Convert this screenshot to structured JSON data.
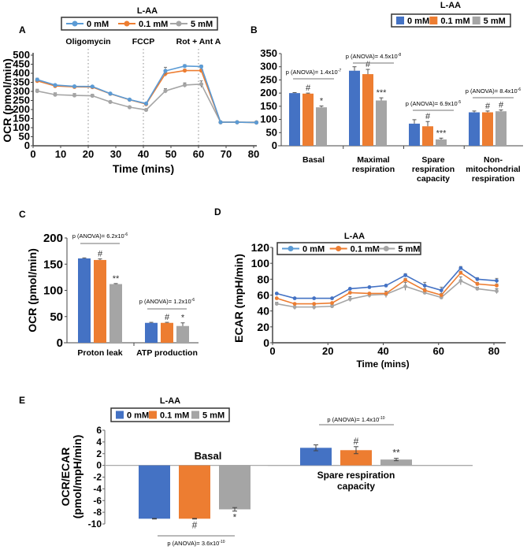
{
  "colors": {
    "c0": "#4472C4",
    "c01": "#ED7D31",
    "c5": "#A5A5A5",
    "line0": "#5B9BD5"
  },
  "legend_title": "L-AA",
  "legend": [
    "0 mM",
    "0.1 mM",
    "5 mM"
  ],
  "chart_data": [
    {
      "panel": "A",
      "type": "line",
      "title": "L-AA",
      "xlabel": "Time (mins)",
      "ylabel": "OCR (pmol/min)",
      "xlim": [
        0,
        82
      ],
      "ylim": [
        0,
        500
      ],
      "xticks": [
        0,
        10,
        20,
        30,
        40,
        50,
        60,
        70,
        80
      ],
      "yticks": [
        0,
        50,
        100,
        150,
        200,
        250,
        300,
        350,
        400,
        450,
        500
      ],
      "annotations": [
        {
          "label": "Oligomycin",
          "x": 20
        },
        {
          "label": "FCCP",
          "x": 40
        },
        {
          "label": "Rot + Ant A",
          "x": 60
        }
      ],
      "x": [
        1.5,
        8,
        15,
        21.5,
        28,
        35,
        41,
        48,
        55,
        61,
        68,
        74,
        81
      ],
      "series": [
        {
          "name": "0 mM",
          "values": [
            365,
            335,
            328,
            327,
            288,
            255,
            233,
            413,
            440,
            437,
            130,
            130,
            128
          ],
          "err": [
            8,
            5,
            5,
            5,
            5,
            4,
            5,
            20,
            8,
            8,
            4,
            3,
            3
          ]
        },
        {
          "name": "0.1 mM",
          "values": [
            358,
            330,
            325,
            324,
            287,
            254,
            230,
            398,
            415,
            415,
            130,
            130,
            128
          ],
          "err": [
            8,
            5,
            5,
            5,
            5,
            4,
            5,
            15,
            8,
            8,
            4,
            3,
            3
          ]
        },
        {
          "name": "5 mM",
          "values": [
            302,
            282,
            278,
            276,
            242,
            213,
            198,
            303,
            335,
            340,
            130,
            130,
            130
          ],
          "err": [
            10,
            10,
            10,
            8,
            5,
            4,
            6,
            12,
            12,
            18,
            4,
            3,
            3
          ]
        }
      ]
    },
    {
      "panel": "B",
      "type": "bar",
      "title": "L-AA",
      "ylabel": "",
      "ylim": [
        0,
        350
      ],
      "yticks": [
        0,
        50,
        100,
        150,
        200,
        250,
        300,
        350
      ],
      "categories": [
        "Basal",
        "Maximal respiration",
        "Spare respiration capacity",
        "Non-mitochondrial respiration"
      ],
      "category_lines": [
        [
          "Basal"
        ],
        [
          "Maximal",
          "respiration"
        ],
        [
          "Spare",
          "respiration",
          "capacity"
        ],
        [
          "Non-",
          "mitochondrial",
          "respiration"
        ]
      ],
      "series": [
        {
          "name": "0 mM",
          "values": [
            200,
            285,
            84,
            127
          ],
          "err": [
            2,
            15,
            15,
            5
          ]
        },
        {
          "name": "0.1 mM",
          "values": [
            198,
            272,
            74,
            127
          ],
          "err": [
            2,
            18,
            18,
            5
          ]
        },
        {
          "name": "5 mM",
          "values": [
            146,
            172,
            24,
            131
          ],
          "err": [
            5,
            10,
            5,
            5
          ]
        }
      ],
      "significance": [
        [
          "",
          "#",
          "*"
        ],
        [
          "",
          "#",
          "***"
        ],
        [
          "",
          "#",
          "***"
        ],
        [
          "",
          "#",
          "#"
        ]
      ],
      "p_values": [
        {
          "base": "p (ANOVA)= 1.4x10",
          "exp": "-7"
        },
        {
          "base": "p (ANOVA)= 4.5x10",
          "exp": "-8"
        },
        {
          "base": "p (ANOVA)= 6.9x10",
          "exp": "-5"
        },
        {
          "base": "p (ANOVA)= 8.4x10",
          "exp": "-6"
        }
      ]
    },
    {
      "panel": "C",
      "type": "bar",
      "ylabel": "OCR (pmol/min)",
      "ylim": [
        0,
        200
      ],
      "yticks": [
        0,
        50,
        100,
        150,
        200
      ],
      "categories": [
        "Proton leak",
        "ATP production"
      ],
      "series": [
        {
          "name": "0 mM",
          "values": [
            161,
            38
          ],
          "err": [
            1,
            1
          ]
        },
        {
          "name": "0.1 mM",
          "values": [
            158,
            38
          ],
          "err": [
            2,
            1
          ]
        },
        {
          "name": "5 mM",
          "values": [
            112,
            32
          ],
          "err": [
            1,
            6
          ]
        }
      ],
      "significance": [
        [
          "",
          "#",
          "**"
        ],
        [
          "",
          "#",
          "*"
        ]
      ],
      "p_values": [
        {
          "base": "p (ANOVA)= 6.2x10",
          "exp": "-6"
        },
        {
          "base": "p (ANOVA)= 1.2x10",
          "exp": "-6"
        }
      ]
    },
    {
      "panel": "D",
      "type": "line",
      "title": "L-AA",
      "xlabel": "Time (mins)",
      "ylabel": "ECAR (mpH/min)",
      "xlim": [
        0,
        85
      ],
      "ylim": [
        0,
        120
      ],
      "xticks": [
        0,
        20,
        40,
        60,
        80
      ],
      "yticks": [
        0,
        20,
        40,
        60,
        80,
        100,
        120
      ],
      "x": [
        1.5,
        8,
        15,
        21.5,
        28,
        35,
        41,
        48,
        55,
        61,
        68,
        74,
        81
      ],
      "series": [
        {
          "name": "0 mM",
          "values": [
            62,
            56,
            56,
            56,
            68,
            70,
            72,
            85,
            72,
            66,
            94,
            80,
            78
          ],
          "err": [
            1,
            1,
            1,
            1,
            1,
            1,
            1,
            2,
            4,
            4,
            2,
            2,
            3
          ]
        },
        {
          "name": "0.1 mM",
          "values": [
            56,
            49,
            49,
            50,
            63,
            62,
            62,
            79,
            66,
            60,
            88,
            74,
            72
          ],
          "err": [
            1,
            1,
            1,
            1,
            1,
            1,
            1,
            2,
            2,
            2,
            2,
            2,
            2
          ]
        },
        {
          "name": "5 mM",
          "values": [
            49,
            45,
            45,
            46,
            55,
            60,
            61,
            71,
            63,
            57,
            78,
            68,
            65
          ],
          "err": [
            2,
            3,
            3,
            2,
            3,
            3,
            4,
            5,
            2,
            2,
            5,
            2,
            3
          ]
        }
      ]
    },
    {
      "panel": "E",
      "type": "bar",
      "title": "L-AA",
      "ylabel": "OCR/ECAR (pmol/mpH/min)",
      "ylabel_lines": [
        "OCR/ECAR",
        "(pmol/mpH/min)"
      ],
      "ylim": [
        -10,
        6
      ],
      "yticks": [
        -10,
        -8,
        -6,
        -4,
        -2,
        0,
        2,
        4,
        6
      ],
      "categories": [
        "Basal",
        "Spare respiration capacity"
      ],
      "category_lines": [
        [
          "Basal"
        ],
        [
          "Spare respiration",
          "capacity"
        ]
      ],
      "series": [
        {
          "name": "0 mM",
          "values": [
            -9.1,
            3.0
          ],
          "err": [
            0.05,
            0.5
          ]
        },
        {
          "name": "0.1 mM",
          "values": [
            -9.1,
            2.6
          ],
          "err": [
            0.05,
            0.6
          ]
        },
        {
          "name": "5 mM",
          "values": [
            -7.5,
            1.0
          ],
          "err": [
            0.3,
            0.2
          ]
        }
      ],
      "significance": [
        [
          "",
          "#",
          "*"
        ],
        [
          "",
          "#",
          "**"
        ]
      ],
      "p_values": [
        {
          "base": "p (ANOVA)= 3.6x10",
          "exp": "-10"
        },
        {
          "base": "p (ANOVA)= 1.4x10",
          "exp": "-10"
        }
      ]
    }
  ],
  "panel_letters": [
    "A",
    "B",
    "C",
    "D",
    "E"
  ]
}
